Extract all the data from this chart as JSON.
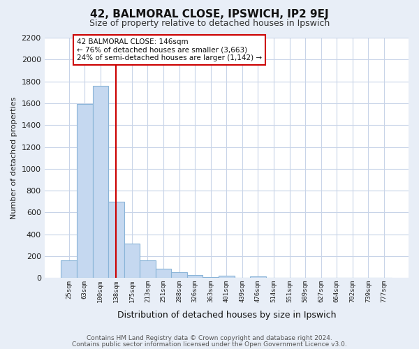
{
  "title": "42, BALMORAL CLOSE, IPSWICH, IP2 9EJ",
  "subtitle": "Size of property relative to detached houses in Ipswich",
  "xlabel": "Distribution of detached houses by size in Ipswich",
  "ylabel": "Number of detached properties",
  "bar_labels": [
    "25sqm",
    "63sqm",
    "100sqm",
    "138sqm",
    "175sqm",
    "213sqm",
    "251sqm",
    "288sqm",
    "326sqm",
    "363sqm",
    "401sqm",
    "439sqm",
    "476sqm",
    "514sqm",
    "551sqm",
    "589sqm",
    "627sqm",
    "664sqm",
    "702sqm",
    "739sqm",
    "777sqm"
  ],
  "bar_values": [
    165,
    1590,
    1760,
    700,
    315,
    160,
    85,
    55,
    30,
    10,
    20,
    0,
    15,
    0,
    0,
    0,
    0,
    0,
    0,
    0,
    0
  ],
  "bar_color": "#c5d8f0",
  "bar_edge_color": "#8ab4d8",
  "vline_x_idx": 3,
  "vline_color": "#cc0000",
  "ylim": [
    0,
    2200
  ],
  "yticks": [
    0,
    200,
    400,
    600,
    800,
    1000,
    1200,
    1400,
    1600,
    1800,
    2000,
    2200
  ],
  "annotation_text": "42 BALMORAL CLOSE: 146sqm\n← 76% of detached houses are smaller (3,663)\n24% of semi-detached houses are larger (1,142) →",
  "annotation_box_edgecolor": "#cc0000",
  "footer_line1": "Contains HM Land Registry data © Crown copyright and database right 2024.",
  "footer_line2": "Contains public sector information licensed under the Open Government Licence v3.0.",
  "bg_color": "#e8eef7",
  "plot_bg_color": "#ffffff",
  "grid_color": "#c8d4e8",
  "title_fontsize": 11,
  "subtitle_fontsize": 9
}
